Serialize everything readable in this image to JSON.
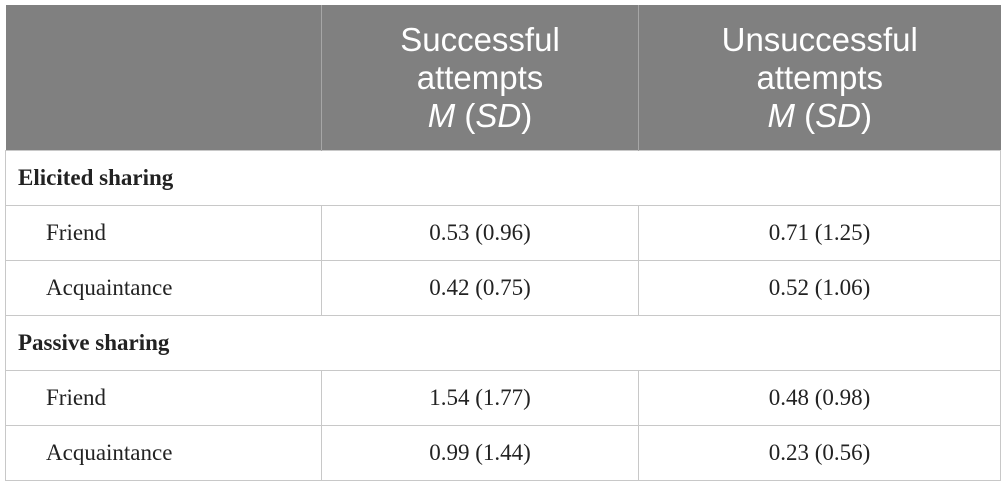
{
  "table": {
    "columns": [
      {
        "label": null
      },
      {
        "label": [
          "Successful",
          "attempts"
        ],
        "stat": [
          "M",
          " (",
          "SD",
          ")"
        ]
      },
      {
        "label": [
          "Unsuccessful",
          "attempts"
        ],
        "stat": [
          "M",
          " (",
          "SD",
          ")"
        ]
      }
    ],
    "sections": [
      {
        "title": "Elicited sharing",
        "rows": [
          [
            "Friend",
            "0.53 (0.96)",
            "0.71 (1.25)"
          ],
          [
            "Acquaintance",
            "0.42 (0.75)",
            "0.52 (1.06)"
          ]
        ]
      },
      {
        "title": "Passive sharing",
        "rows": [
          [
            "Friend",
            "1.54 (1.77)",
            "0.48 (0.98)"
          ],
          [
            "Acquaintance",
            "0.99 (1.44)",
            "0.23 (0.56)"
          ]
        ]
      }
    ]
  }
}
